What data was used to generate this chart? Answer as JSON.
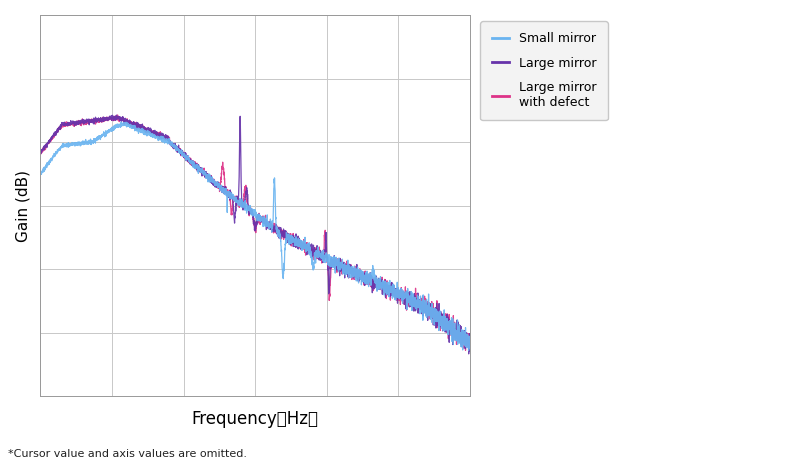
{
  "title": "",
  "xlabel": "Frequency（Hz）",
  "ylabel": "Gain (dB)",
  "footnote": "*Cursor value and axis values are omitted.",
  "legend_entries": [
    "Small mirror",
    "Large mirror",
    "Large mirror\nwith defect"
  ],
  "colors": {
    "small_mirror": "#6ab4f0",
    "large_mirror": "#6633aa",
    "large_mirror_defect": "#dd3388"
  },
  "background_color": "#ffffff",
  "grid_color": "#c8c8c8"
}
